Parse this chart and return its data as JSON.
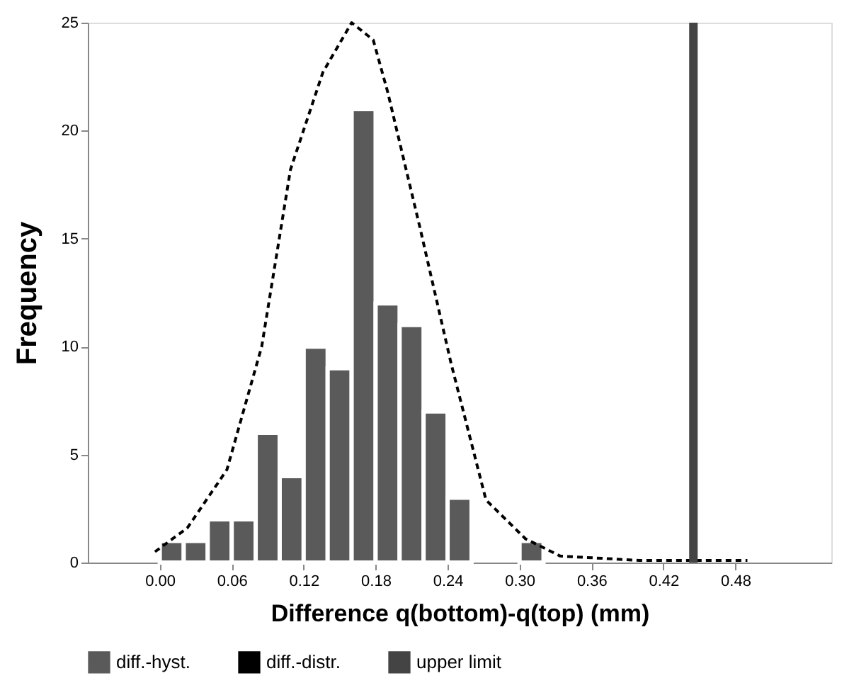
{
  "chart_data": {
    "type": "histogram",
    "xlabel": "Difference q(bottom)-q(top)  (mm)",
    "ylabel": "Frequency",
    "bins": [
      0.0,
      0.02,
      0.04,
      0.06,
      0.08,
      0.1,
      0.12,
      0.14,
      0.16,
      0.18,
      0.2,
      0.22,
      0.24,
      0.26,
      0.28,
      0.3,
      0.32
    ],
    "series": [
      {
        "name": "diff.-hyst.",
        "color": "#5a5a5a",
        "values": [
          1,
          1,
          2,
          2,
          6,
          4,
          10,
          9,
          21,
          12,
          11,
          7,
          3,
          0,
          0,
          1
        ]
      },
      {
        "name": "diff.-distr.",
        "type": "line",
        "line_style": "dashed",
        "color": "#000000",
        "x": [
          -0.004,
          0.023,
          0.056,
          0.085,
          0.109,
          0.136,
          0.16,
          0.178,
          0.19,
          0.217,
          0.243,
          0.272,
          0.305,
          0.334,
          0.4,
          0.49
        ],
        "values": [
          0.5,
          1.6,
          4.3,
          10,
          18.2,
          22.7,
          25,
          24.2,
          21.8,
          15.5,
          9.2,
          2.9,
          1.1,
          0.3,
          0.1,
          0.1
        ]
      }
    ],
    "ref_lines": [
      {
        "axis": "x",
        "value": 0.445,
        "label": "upper limit",
        "color": "#444444"
      }
    ],
    "xlim": [
      -0.06,
      0.56
    ],
    "xticks": [
      {
        "value": 0,
        "label": "0.00"
      },
      0.06,
      0.12,
      0.18,
      0.24,
      {
        "value": 0.3,
        "label": "0.30"
      },
      0.36,
      0.42,
      0.48
    ],
    "ylim": [
      0,
      25
    ],
    "yticks": [
      0,
      5,
      10,
      15,
      20,
      25
    ],
    "grid": false,
    "legend": "bottom"
  }
}
